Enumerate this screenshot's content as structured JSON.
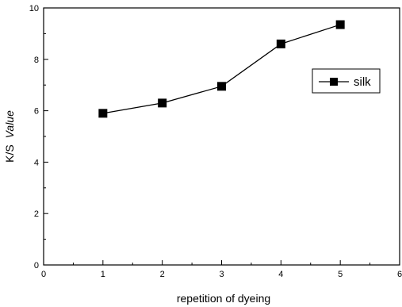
{
  "chart_data": {
    "type": "line",
    "title": "",
    "xlabel": "repetition of dyeing",
    "ylabel_parts": [
      "K/S",
      "Value"
    ],
    "xlim": [
      0,
      6
    ],
    "ylim": [
      0,
      10
    ],
    "x_ticks": [
      0,
      1,
      2,
      3,
      4,
      5,
      6
    ],
    "y_ticks": [
      0,
      2,
      4,
      6,
      8,
      10
    ],
    "x_tick_labels": [
      "0",
      "1",
      "2",
      "3",
      "4",
      "5",
      "6"
    ],
    "y_tick_labels": [
      "0",
      "2",
      "4",
      "6",
      "8",
      "10"
    ],
    "grid": false,
    "legend_placement": "right",
    "series": [
      {
        "name": "silk",
        "marker": "square",
        "color": "#000000",
        "x": [
          1,
          2,
          3,
          4,
          5
        ],
        "y": [
          5.9,
          6.3,
          6.95,
          8.6,
          9.35
        ]
      }
    ]
  }
}
